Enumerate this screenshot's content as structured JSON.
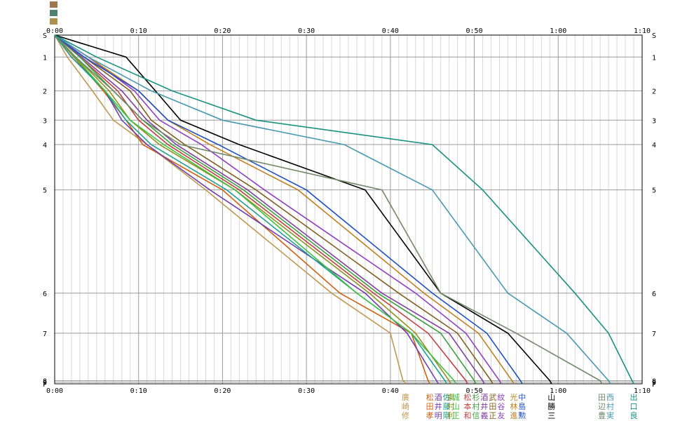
{
  "chart_data": {
    "type": "line",
    "x_unit": "elapsed time (minutes)",
    "xlim": [
      0,
      70
    ],
    "x_tick_values": [
      0,
      10,
      20,
      30,
      40,
      50,
      60,
      70
    ],
    "x_tick_labels": [
      "0:00",
      "0:10",
      "0:20",
      "0:30",
      "0:40",
      "0:50",
      "1:00",
      "1:10"
    ],
    "y_unit": "section distance (relative, 0 = S, 1 = F)",
    "ylim": [
      0,
      1
    ],
    "stations": [
      {
        "label": "S",
        "pos": 0.0
      },
      {
        "label": "1",
        "pos": 0.063
      },
      {
        "label": "2",
        "pos": 0.16
      },
      {
        "label": "3",
        "pos": 0.244
      },
      {
        "label": "4",
        "pos": 0.314
      },
      {
        "label": "5",
        "pos": 0.444
      },
      {
        "label": "6",
        "pos": 0.74
      },
      {
        "label": "7",
        "pos": 0.855
      },
      {
        "label": "8",
        "pos": 0.991
      },
      {
        "label": "9",
        "pos": 0.995
      },
      {
        "label": "F",
        "pos": 1.0
      }
    ],
    "grid": true,
    "legend_top_swatches": [
      "#a07850",
      "#508070",
      "#b09050"
    ],
    "series": [
      {
        "name": "廣崎修",
        "color": "#c09850",
        "times": [
          0,
          1.5,
          4.5,
          7,
          11,
          18,
          33,
          40,
          41.5,
          41.7,
          41.8
        ]
      },
      {
        "name": "松田孝",
        "color": "#d06010",
        "times": [
          0,
          2.3,
          5.8,
          8.5,
          10.5,
          20,
          34,
          42.5,
          44.5,
          44.6,
          44.7
        ]
      },
      {
        "name": "酒井明",
        "color": "#7040b0",
        "times": [
          0,
          2,
          6,
          8,
          11,
          18.5,
          37,
          42,
          45.5,
          45.6,
          45.7
        ]
      },
      {
        "name": "佐藤剛",
        "color": "#20a090",
        "times": [
          0,
          2,
          6,
          8.5,
          11.5,
          20.5,
          36,
          42.5,
          46.5,
          46.6,
          46.7
        ]
      },
      {
        "name": "東村利",
        "color": "#909020",
        "times": [
          0,
          2.5,
          6.5,
          9,
          12.5,
          21.5,
          37.5,
          43,
          47,
          47.1,
          47.2
        ]
      },
      {
        "name": "城山正",
        "color": "#40c040",
        "times": [
          0,
          2.4,
          6,
          9,
          13,
          21.5,
          36,
          42.5,
          47.6,
          47.7,
          47.8
        ]
      },
      {
        "name": "松本和",
        "color": "#c04040",
        "times": [
          0,
          3,
          7.5,
          10,
          13.5,
          22,
          38,
          44.5,
          49,
          49.1,
          49.2
        ]
      },
      {
        "name": "杉村信",
        "color": "#40a040",
        "times": [
          0,
          3,
          7,
          10.5,
          14,
          22.5,
          38.5,
          46,
          50,
          50.1,
          50.2
        ]
      },
      {
        "name": "酒井義",
        "color": "#8040a0",
        "times": [
          0,
          3.2,
          8,
          11,
          14.5,
          23,
          39,
          47,
          51,
          51.1,
          51.2
        ]
      },
      {
        "name": "武田正",
        "color": "#806020",
        "times": [
          0,
          3.5,
          9,
          11.5,
          15.5,
          24,
          41,
          48,
          52,
          52.1,
          52.2
        ]
      },
      {
        "name": "紋谷友",
        "color": "#9040c0",
        "times": [
          0,
          4,
          9.5,
          12.5,
          17.5,
          25,
          43,
          49,
          53,
          53.1,
          53.2
        ]
      },
      {
        "name": "光林進",
        "color": "#c08020",
        "times": [
          0,
          4,
          10,
          13.5,
          18.5,
          29,
          44,
          50.5,
          54.5,
          54.6,
          54.7
        ]
      },
      {
        "name": "中島勲",
        "color": "#2050c0",
        "times": [
          0,
          3.5,
          10,
          13.5,
          19.5,
          30,
          45,
          51.5,
          55.5,
          55.6,
          55.7
        ]
      },
      {
        "name": "山勝三",
        "color": "#000000",
        "times": [
          0,
          8.5,
          12,
          15,
          22,
          37,
          46,
          54,
          59,
          59.1,
          59.2
        ]
      },
      {
        "name": "田辺豊",
        "color": "#708868",
        "times": [
          0,
          2.5,
          7,
          10.5,
          15,
          39,
          46,
          55,
          65,
          65.1,
          65.2
        ]
      },
      {
        "name": "西村実",
        "color": "#4898b0",
        "times": [
          0,
          4,
          11.5,
          20,
          34.5,
          45,
          54,
          61,
          66,
          66.1,
          66.2
        ]
      },
      {
        "name": "出口良",
        "color": "#189080",
        "times": [
          0,
          5,
          14,
          24,
          45,
          51,
          62,
          66,
          68.8,
          68.9,
          69
        ]
      }
    ]
  }
}
